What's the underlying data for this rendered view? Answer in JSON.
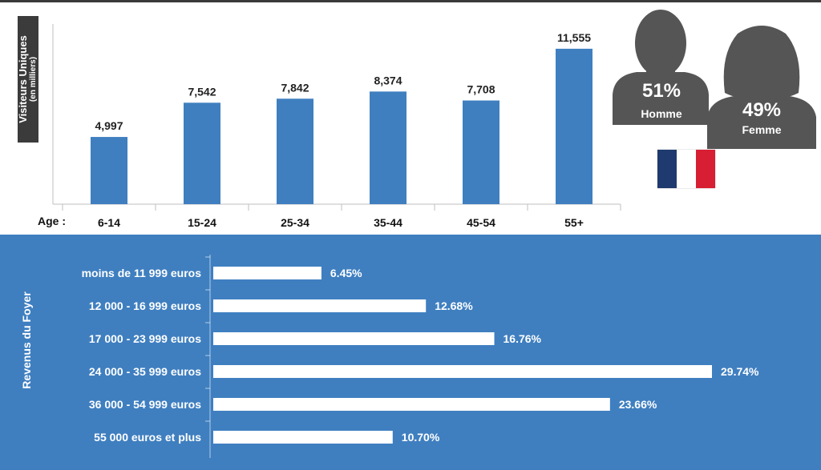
{
  "age_chart": {
    "ylabel": "Visiteurs Uniques",
    "ylabel_sub": "(en milliers)",
    "xlabel": "Age :"
  },
  "gender": {
    "male": {
      "percent": "51%",
      "label": "Homme"
    },
    "female": {
      "percent": "49%",
      "label": "Femme"
    }
  },
  "flag": {
    "colors": [
      "#1f3a6e",
      "#ffffff",
      "#d81e32"
    ]
  },
  "income_chart": {
    "ylabel": "Revenus du Foyer"
  },
  "colors": {
    "bar_blue": "#3f7fc0",
    "bar_white": "#ffffff",
    "icon_gray": "#555555",
    "ylabel_box": "#3b3b3b"
  },
  "chart_data": [
    {
      "type": "bar",
      "categories": [
        "6-14",
        "15-24",
        "25-34",
        "35-44",
        "45-54",
        "55+"
      ],
      "values": [
        4997,
        7542,
        7842,
        8374,
        7708,
        11555
      ],
      "value_labels": [
        "4,997",
        "7,542",
        "7,842",
        "8,374",
        "7,708",
        "11,555"
      ],
      "xlabel": "Age :",
      "ylabel": "Visiteurs Uniques (en milliers)",
      "ylim": [
        0,
        12500
      ],
      "grid": false
    },
    {
      "type": "bar",
      "orientation": "horizontal",
      "categories": [
        "moins de 11 999 euros",
        "12 000 - 16 999 euros",
        "17 000 - 23 999 euros",
        "24 000 - 35 999 euros",
        "36 000 - 54 999 euros",
        "55 000 euros et plus"
      ],
      "values": [
        6.45,
        12.68,
        16.76,
        29.74,
        23.66,
        10.7
      ],
      "value_labels": [
        "6.45%",
        "12.68%",
        "16.76%",
        "29.74%",
        "23.66%",
        "10.70%"
      ],
      "ylabel": "Revenus du Foyer",
      "xlim": [
        0,
        29.74
      ],
      "grid": false
    }
  ]
}
